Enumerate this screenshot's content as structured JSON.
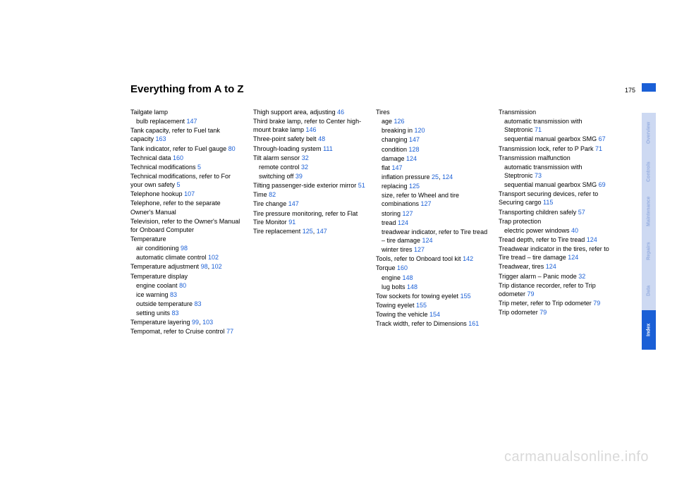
{
  "pageTitle": "Everything from A to Z",
  "pageNumber": "175",
  "watermark": "carmanualsonline.info",
  "tabs": [
    {
      "label": "Overview",
      "active": false
    },
    {
      "label": "Controls",
      "active": false
    },
    {
      "label": "Maintenance",
      "active": false
    },
    {
      "label": "Repairs",
      "active": false
    },
    {
      "label": "Data",
      "active": false
    },
    {
      "label": "Index",
      "active": true
    }
  ],
  "colors": {
    "accent": "#1a5fd6",
    "tabFadedBg": "#cdd9f2",
    "tabFadedFg": "#96aee0",
    "watermark": "#d9d9d9",
    "text": "#000000"
  },
  "cols": [
    [
      {
        "t": "Tailgate lamp"
      },
      {
        "t": "bulb replacement ",
        "r": "147",
        "sub": true
      },
      {
        "t": "Tank capacity, refer to Fuel tank capacity ",
        "r": "163"
      },
      {
        "t": "Tank indicator, refer to Fuel gauge ",
        "r": "80"
      },
      {
        "t": "Technical data ",
        "r": "160"
      },
      {
        "t": "Technical modifications ",
        "r": "5"
      },
      {
        "t": "Technical modifications, refer to For your own safety ",
        "r": "5"
      },
      {
        "t": "Telephone hookup ",
        "r": "107"
      },
      {
        "t": "Telephone, refer to the separate Owner's Manual"
      },
      {
        "t": "Television, refer to the Owner's Manual for Onboard Computer"
      },
      {
        "t": "Temperature"
      },
      {
        "t": "air conditioning ",
        "r": "98",
        "sub": true
      },
      {
        "t": "automatic climate control ",
        "r": "102",
        "sub": true
      },
      {
        "t": "Temperature adjustment ",
        "r": "98",
        "r2": "102"
      },
      {
        "t": "Temperature display"
      },
      {
        "t": "engine coolant ",
        "r": "80",
        "sub": true
      },
      {
        "t": "ice warning ",
        "r": "83",
        "sub": true
      },
      {
        "t": "outside temperature ",
        "r": "83",
        "sub": true
      },
      {
        "t": "setting units ",
        "r": "83",
        "sub": true
      },
      {
        "t": "Temperature layering ",
        "r": "99",
        "r2": "103"
      },
      {
        "t": "Tempomat, refer to Cruise control ",
        "r": "77"
      }
    ],
    [
      {
        "t": "Thigh support area, adjusting ",
        "r": "46"
      },
      {
        "t": "Third brake lamp, refer to Center high-mount brake lamp ",
        "r": "146"
      },
      {
        "t": "Three-point safety belt ",
        "r": "48"
      },
      {
        "t": "Through-loading system ",
        "r": "111"
      },
      {
        "t": "Tilt alarm sensor ",
        "r": "32"
      },
      {
        "t": "remote control ",
        "r": "32",
        "sub": true
      },
      {
        "t": "switching off ",
        "r": "39",
        "sub": true
      },
      {
        "t": "Tilting passenger-side exterior mirror ",
        "r": "51"
      },
      {
        "t": "Time ",
        "r": "82"
      },
      {
        "t": "Tire change ",
        "r": "147"
      },
      {
        "t": "Tire pressure monitoring, refer to Flat Tire Monitor ",
        "r": "91"
      },
      {
        "t": "Tire replacement ",
        "r": "125",
        "r2": "147"
      }
    ],
    [
      {
        "t": "Tires"
      },
      {
        "t": "age ",
        "r": "126",
        "sub": true
      },
      {
        "t": "breaking in ",
        "r": "120",
        "sub": true
      },
      {
        "t": "changing ",
        "r": "147",
        "sub": true
      },
      {
        "t": "condition ",
        "r": "128",
        "sub": true
      },
      {
        "t": "damage ",
        "r": "124",
        "sub": true
      },
      {
        "t": "flat ",
        "r": "147",
        "sub": true
      },
      {
        "t": "inflation pressure ",
        "r": "25",
        "r2": "124",
        "sub": true
      },
      {
        "t": "replacing ",
        "r": "125",
        "sub": true
      },
      {
        "t": "size, refer to Wheel and tire combinations ",
        "r": "127",
        "sub": true
      },
      {
        "t": "storing ",
        "r": "127",
        "sub": true
      },
      {
        "t": "tread ",
        "r": "124",
        "sub": true
      },
      {
        "t": "treadwear indicator, refer to Tire tread – tire damage ",
        "r": "124",
        "sub": true
      },
      {
        "t": "winter tires ",
        "r": "127",
        "sub": true
      },
      {
        "t": "Tools, refer to Onboard tool kit ",
        "r": "142"
      },
      {
        "t": "Torque ",
        "r": "160"
      },
      {
        "t": "engine ",
        "r": "148",
        "sub": true
      },
      {
        "t": "lug bolts ",
        "r": "148",
        "sub": true
      },
      {
        "t": "Tow sockets for towing eyelet ",
        "r": "155"
      },
      {
        "t": "Towing eyelet ",
        "r": "155"
      },
      {
        "t": "Towing the vehicle ",
        "r": "154"
      },
      {
        "t": "Track width, refer to Dimensions ",
        "r": "161"
      }
    ],
    [
      {
        "t": "Transmission"
      },
      {
        "t": "automatic transmission with Steptronic ",
        "r": "71",
        "sub": true
      },
      {
        "t": "sequential manual gearbox SMG ",
        "r": "67",
        "sub": true
      },
      {
        "t": "Transmission lock, refer to P Park ",
        "r": "71"
      },
      {
        "t": "Transmission malfunction"
      },
      {
        "t": "automatic transmission with Steptronic ",
        "r": "73",
        "sub": true
      },
      {
        "t": "sequential manual gearbox SMG ",
        "r": "69",
        "sub": true
      },
      {
        "t": "Transport securing devices, refer to Securing cargo ",
        "r": "115"
      },
      {
        "t": "Transporting children safely ",
        "r": "57"
      },
      {
        "t": "Trap protection"
      },
      {
        "t": "electric power windows ",
        "r": "40",
        "sub": true
      },
      {
        "t": "Tread depth, refer to Tire tread ",
        "r": "124"
      },
      {
        "t": "Treadwear indicator in the tires, refer to Tire tread – tire damage ",
        "r": "124"
      },
      {
        "t": "Treadwear, tires ",
        "r": "124"
      },
      {
        "t": "Trigger alarm – Panic mode ",
        "r": "32"
      },
      {
        "t": "Trip distance recorder, refer to Trip odometer ",
        "r": "79"
      },
      {
        "t": "Trip meter, refer to Trip odometer ",
        "r": "79"
      },
      {
        "t": "Trip odometer ",
        "r": "79"
      }
    ]
  ]
}
